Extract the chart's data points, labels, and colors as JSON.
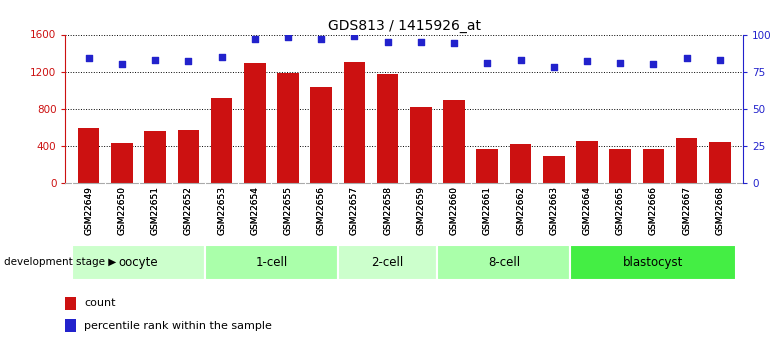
{
  "title": "GDS813 / 1415926_at",
  "samples": [
    "GSM22649",
    "GSM22650",
    "GSM22651",
    "GSM22652",
    "GSM22653",
    "GSM22654",
    "GSM22655",
    "GSM22656",
    "GSM22657",
    "GSM22658",
    "GSM22659",
    "GSM22660",
    "GSM22661",
    "GSM22662",
    "GSM22663",
    "GSM22664",
    "GSM22665",
    "GSM22666",
    "GSM22667",
    "GSM22668"
  ],
  "counts": [
    590,
    430,
    560,
    570,
    920,
    1290,
    1190,
    1030,
    1300,
    1175,
    820,
    890,
    370,
    420,
    290,
    450,
    360,
    370,
    480,
    440
  ],
  "percentiles": [
    84,
    80,
    83,
    82,
    85,
    97,
    98,
    97,
    99,
    95,
    95,
    94,
    81,
    83,
    78,
    82,
    81,
    80,
    84,
    83
  ],
  "stages": [
    {
      "label": "oocyte",
      "start": 0,
      "end": 4,
      "color": "#ccffcc"
    },
    {
      "label": "1-cell",
      "start": 4,
      "end": 8,
      "color": "#aaffaa"
    },
    {
      "label": "2-cell",
      "start": 8,
      "end": 11,
      "color": "#ccffcc"
    },
    {
      "label": "8-cell",
      "start": 11,
      "end": 15,
      "color": "#aaffaa"
    },
    {
      "label": "blastocyst",
      "start": 15,
      "end": 20,
      "color": "#44ee44"
    }
  ],
  "bar_color": "#cc1111",
  "dot_color": "#2222cc",
  "ylim_left": [
    0,
    1600
  ],
  "ylim_right": [
    0,
    100
  ],
  "yticks_left": [
    0,
    400,
    800,
    1200,
    1600
  ],
  "yticks_right": [
    0,
    25,
    50,
    75,
    100
  ],
  "xtick_bg": "#cccccc",
  "stage_label": "development stage",
  "legend_count": "count",
  "legend_percentile": "percentile rank within the sample"
}
